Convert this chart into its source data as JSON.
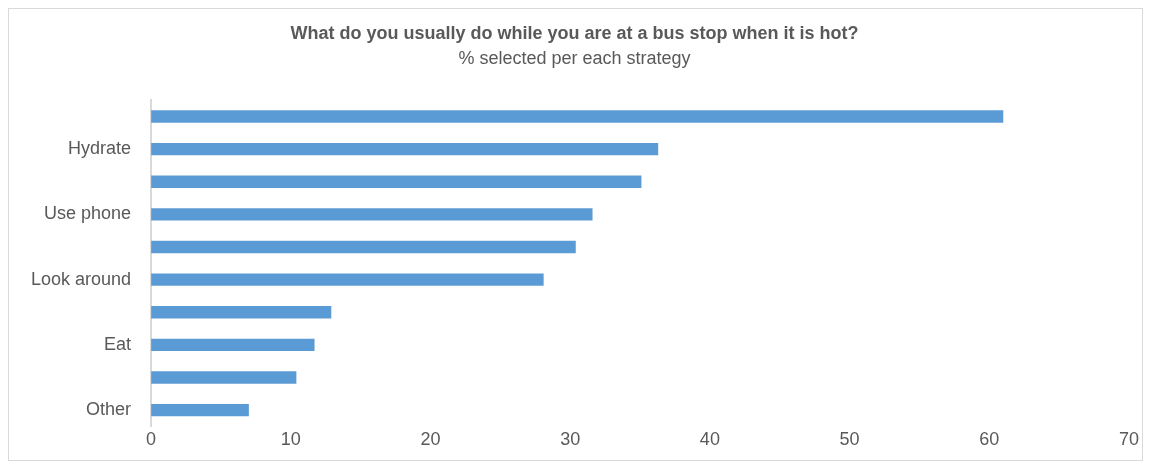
{
  "chart_data": {
    "type": "bar",
    "orientation": "horizontal",
    "title": "What do you usually do while you are at a bus stop when it is hot?",
    "subtitle": "% selected per each strategy",
    "categories": [
      null,
      "Hydrate",
      null,
      "Use phone",
      null,
      "Look around",
      null,
      "Eat",
      null,
      "Other"
    ],
    "values": [
      61.0,
      36.3,
      35.1,
      31.6,
      30.4,
      28.1,
      12.9,
      11.7,
      10.4,
      7.0
    ],
    "color": "#5b9bd5",
    "xlim": [
      0,
      70
    ],
    "xticks": [
      0,
      10,
      20,
      30,
      40,
      50,
      60,
      70
    ],
    "grid": false,
    "legend": false
  }
}
